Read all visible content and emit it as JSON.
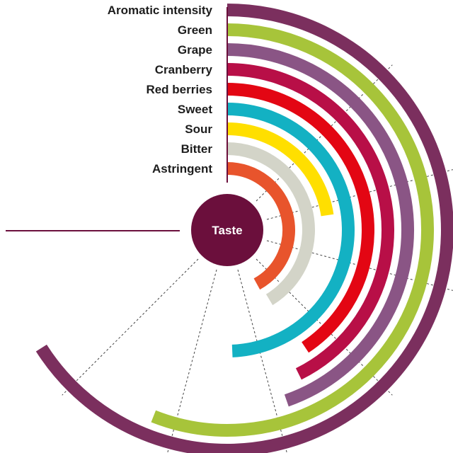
{
  "chart_data": {
    "type": "radial_bar",
    "center_label": "Taste",
    "series": [
      {
        "label": "Aromatic intensity",
        "value": 0.99,
        "color": "#7b2f5e"
      },
      {
        "label": "Green",
        "value": 0.84,
        "color": "#a7c43a"
      },
      {
        "label": "Grape",
        "value": 0.67,
        "color": "#8a5585"
      },
      {
        "label": "Cranberry",
        "value": 0.64,
        "color": "#b80f47"
      },
      {
        "label": "Red berries",
        "value": 0.61,
        "color": "#e30613"
      },
      {
        "label": "Sweet",
        "value": 0.74,
        "color": "#13b1c3"
      },
      {
        "label": "Sour",
        "value": 0.34,
        "color": "#ffdf00"
      },
      {
        "label": "Bitter",
        "value": 0.62,
        "color": "#d3d4c8"
      },
      {
        "label": "Astringent",
        "value": 0.63,
        "color": "#e8542c"
      }
    ],
    "center_color": "#6b0f3c",
    "guide_color": "#6b0f3c"
  }
}
